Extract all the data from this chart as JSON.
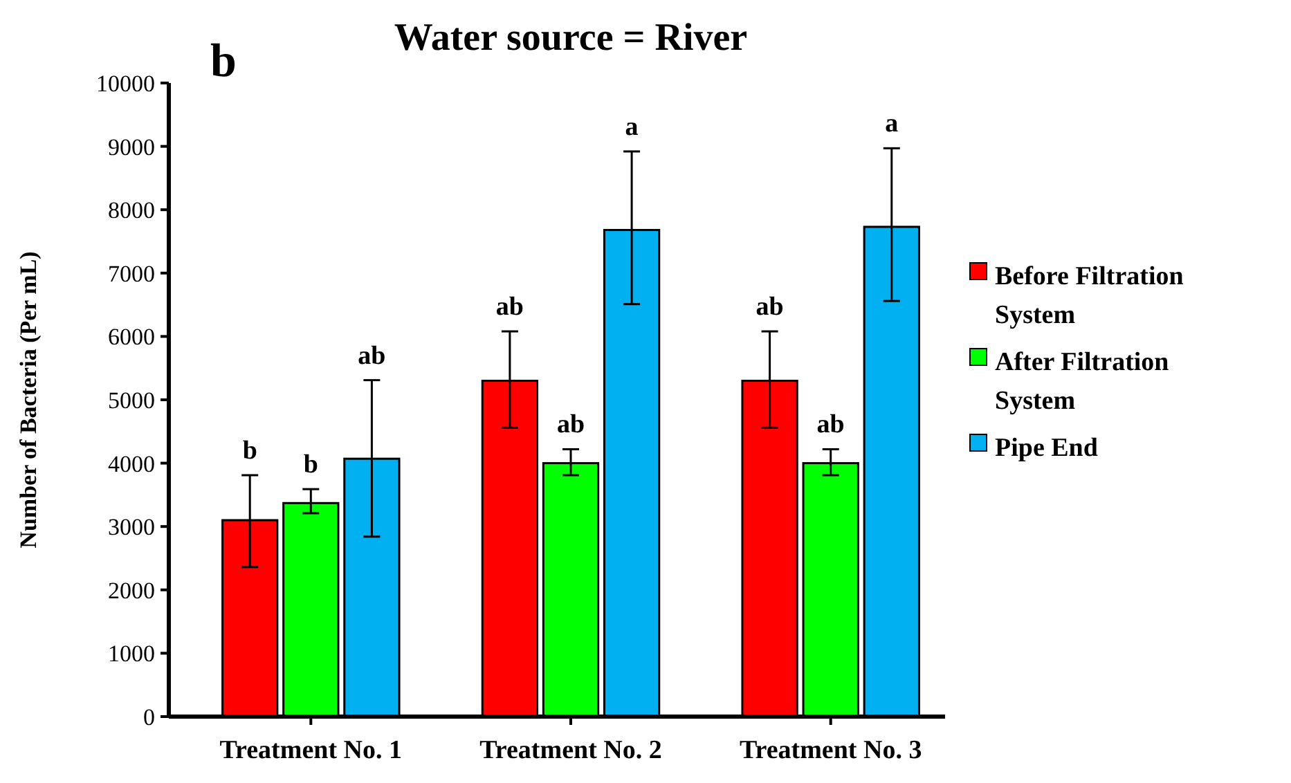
{
  "chart_data": {
    "type": "bar",
    "title": "Water source = River",
    "ylabel": "Number  of Bacteria (Per mL)",
    "categories": [
      "Treatment No. 1",
      "Treatment No. 2",
      "Treatment No. 3"
    ],
    "series": [
      {
        "name": "Before Filtration System",
        "color": "#ff0000",
        "values": [
          3100,
          5300,
          5300
        ],
        "errors": [
          [
            2360,
            3810
          ],
          [
            4560,
            6080
          ],
          [
            4560,
            6080
          ]
        ]
      },
      {
        "name": "After Filtration System",
        "color": "#00ff00",
        "values": [
          3370,
          4000,
          4000
        ],
        "errors": [
          [
            3210,
            3590
          ],
          [
            3810,
            4220
          ],
          [
            3810,
            4220
          ]
        ]
      },
      {
        "name": "Pipe End",
        "color": "#00b0f0",
        "values": [
          4070,
          7680,
          7730
        ],
        "errors": [
          [
            2840,
            5310
          ],
          [
            6510,
            8920
          ],
          [
            6560,
            8970
          ]
        ]
      }
    ],
    "ylim": [
      0,
      10000
    ],
    "yticks": [
      0,
      1000,
      2000,
      3000,
      4000,
      5000,
      6000,
      7000,
      8000,
      9000,
      10000
    ],
    "legend": "right",
    "grid": false,
    "annotations": [
      "b",
      "b",
      "b",
      "ab",
      "ab",
      "ab",
      "a",
      "ab",
      "ab",
      "a"
    ]
  }
}
